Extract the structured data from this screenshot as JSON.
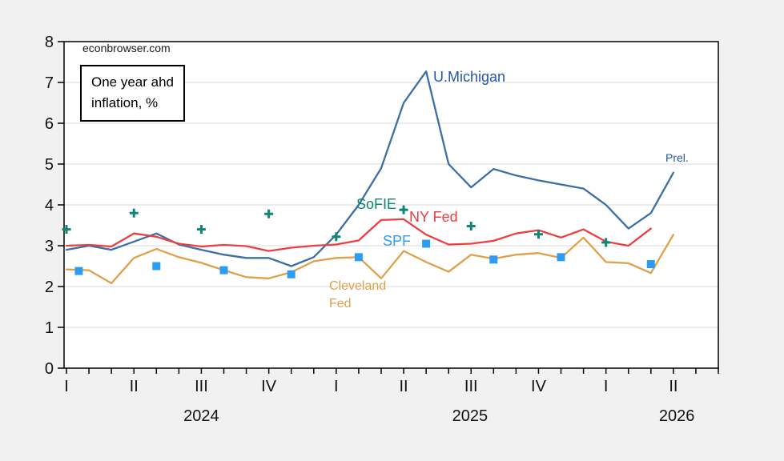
{
  "watermark": "econbrowser.com",
  "legend_box": {
    "line1": "One year ahd",
    "line2": "inflation, %"
  },
  "labels": {
    "umichigan": "U.Michigan",
    "sofie": "SoFIE",
    "nyfed": "NY Fed",
    "spf": "SPF",
    "cleveland_line1": "Cleveland",
    "cleveland_line2": "Fed",
    "prel": "Prel."
  },
  "colors": {
    "background": "#f1f1f1",
    "plot_background": "#ffffff",
    "gridline": "#d9d9d9",
    "axis": "#000000",
    "umich_line": "#3c6fa5",
    "umich_label": "#2558a5",
    "nyfed": "#ee3e41",
    "cleveland": "#dfa04a",
    "sofie": "#0f8674",
    "spf": "#2d9cf4"
  },
  "chart_data": {
    "type": "line",
    "title": "One year ahd inflation, %",
    "x_unit": "month",
    "x_start": "2024-01",
    "months_span": 29,
    "ylim": [
      0,
      8
    ],
    "yticks": [
      0,
      1,
      2,
      3,
      4,
      5,
      6,
      7,
      8
    ],
    "grid": "horizontal-only",
    "quarter_labels": [
      {
        "m": 0,
        "label": "I"
      },
      {
        "m": 3,
        "label": "II"
      },
      {
        "m": 6,
        "label": "III"
      },
      {
        "m": 9,
        "label": "IV"
      },
      {
        "m": 12,
        "label": "I"
      },
      {
        "m": 15,
        "label": "II"
      },
      {
        "m": 18,
        "label": "III"
      },
      {
        "m": 21,
        "label": "IV"
      },
      {
        "m": 24,
        "label": "I"
      },
      {
        "m": 27,
        "label": "II"
      }
    ],
    "year_labels": [
      {
        "m": 6.0,
        "label": "2024"
      },
      {
        "m": 17.95,
        "label": "2025"
      },
      {
        "m": 27.15,
        "label": "2026"
      }
    ],
    "series": [
      {
        "id": "umichigan",
        "name": "U.Michigan",
        "type": "line",
        "color": "#3c6fa5",
        "months": [
          0,
          1,
          2,
          3,
          4,
          5,
          6,
          7,
          8,
          9,
          10,
          11,
          12,
          13,
          14,
          15,
          16,
          17,
          18,
          19,
          20,
          21,
          22,
          23,
          24,
          25,
          26,
          27
        ],
        "values": [
          2.9,
          3.0,
          2.9,
          3.1,
          3.3,
          3.03,
          2.9,
          2.78,
          2.7,
          2.7,
          2.5,
          2.72,
          3.27,
          4.0,
          4.9,
          6.5,
          7.27,
          5.0,
          4.43,
          4.88,
          4.72,
          4.6,
          4.5,
          4.4,
          4.0,
          3.42,
          3.8,
          4.79
        ]
      },
      {
        "id": "cleveland",
        "name": "Cleveland Fed",
        "type": "line",
        "color": "#dfa04a",
        "months": [
          0,
          1,
          2,
          3,
          4,
          5,
          6,
          7,
          8,
          9,
          10,
          11,
          12,
          13,
          14,
          15,
          16,
          17,
          18,
          19,
          20,
          21,
          22,
          23,
          24,
          25,
          26,
          27
        ],
        "values": [
          2.42,
          2.4,
          2.08,
          2.7,
          2.92,
          2.72,
          2.58,
          2.4,
          2.23,
          2.2,
          2.35,
          2.62,
          2.7,
          2.72,
          2.2,
          2.87,
          2.6,
          2.36,
          2.78,
          2.68,
          2.78,
          2.82,
          2.7,
          3.2,
          2.6,
          2.57,
          2.33,
          3.27
        ]
      },
      {
        "id": "nyfed",
        "name": "NY Fed",
        "type": "line",
        "color": "#ee3e41",
        "months": [
          0,
          1,
          2,
          3,
          4,
          5,
          6,
          7,
          8,
          9,
          10,
          11,
          12,
          13,
          14,
          15,
          16,
          17,
          18,
          19,
          20,
          21,
          22,
          23,
          24,
          25,
          26
        ],
        "values": [
          3.0,
          3.02,
          2.98,
          3.3,
          3.22,
          3.05,
          2.98,
          3.02,
          2.99,
          2.87,
          2.95,
          3.0,
          3.03,
          3.13,
          3.63,
          3.65,
          3.27,
          3.03,
          3.05,
          3.12,
          3.3,
          3.38,
          3.2,
          3.4,
          3.1,
          3.0,
          3.42
        ]
      },
      {
        "id": "sofie",
        "name": "SoFIE",
        "type": "scatter",
        "marker": "plus",
        "color": "#0f8674",
        "months": [
          0,
          3,
          6,
          9,
          12,
          15,
          18,
          21,
          24
        ],
        "values": [
          3.4,
          3.8,
          3.4,
          3.78,
          3.22,
          3.88,
          3.48,
          3.28,
          3.08
        ]
      },
      {
        "id": "spf",
        "name": "SPF",
        "type": "scatter",
        "marker": "square",
        "color": "#2d9cf4",
        "months": [
          0.55,
          4,
          7,
          10,
          13,
          16,
          19,
          22,
          26
        ],
        "values": [
          2.38,
          2.5,
          2.4,
          2.3,
          2.72,
          3.05,
          2.66,
          2.72,
          2.55
        ]
      }
    ]
  }
}
